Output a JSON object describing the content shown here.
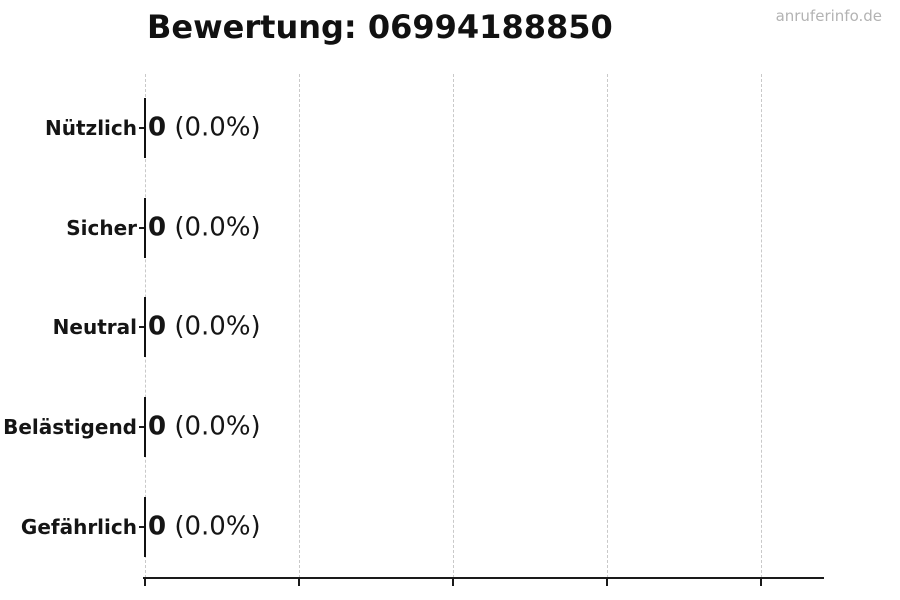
{
  "header": {
    "title": "Bewertung: 06994188850",
    "watermark": "anruferinfo.de"
  },
  "chart_data": {
    "type": "bar",
    "orientation": "horizontal",
    "title": "Bewertung: 06994188850",
    "categories": [
      "Nützlich",
      "Sicher",
      "Neutral",
      "Belästigend",
      "Gefährlich"
    ],
    "values": [
      0,
      0,
      0,
      0,
      0
    ],
    "value_labels": [
      "0 (0.0%)",
      "0 (0.0%)",
      "0 (0.0%)",
      "0 (0.0%)",
      "0 (0.0%)"
    ],
    "xlabel": "",
    "ylabel": "",
    "x_ticks": {
      "count": 5,
      "labels_visible": false
    },
    "grid": "vertical-dashed",
    "legend": "none",
    "colors": {
      "bar_edge": "#111111",
      "text": "#151515",
      "gridline": "#c9c9c9",
      "watermark": "#b3b3b3"
    }
  },
  "rows": [
    {
      "label": "Nützlich",
      "count": "0",
      "percent": " (0.0%)"
    },
    {
      "label": "Sicher",
      "count": "0",
      "percent": " (0.0%)"
    },
    {
      "label": "Neutral",
      "count": "0",
      "percent": " (0.0%)"
    },
    {
      "label": "Belästigend",
      "count": "0",
      "percent": " (0.0%)"
    },
    {
      "label": "Gefährlich",
      "count": "0",
      "percent": " (0.0%)"
    }
  ]
}
